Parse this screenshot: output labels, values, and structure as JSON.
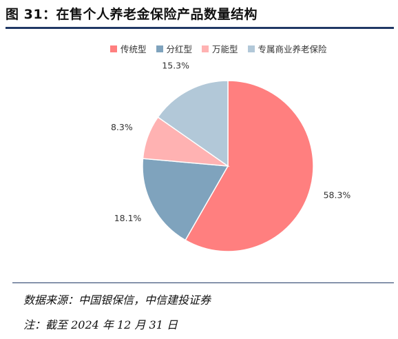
{
  "figure": {
    "title": "图 31：在售个人养老金保险产品数量结构",
    "source": "数据来源：中国银保信，中信建投证券",
    "note": "注：截至 2024 年 12 月 31 日"
  },
  "chart_data": {
    "type": "pie",
    "title": "图 31：在售个人养老金保险产品数量结构",
    "categories": [
      "传统型",
      "分红型",
      "万能型",
      "专属商业养老保险"
    ],
    "values": [
      58.3,
      18.1,
      8.3,
      15.3
    ],
    "labels": [
      "58.3%",
      "18.1%",
      "8.3%",
      "15.3%"
    ],
    "colors": [
      "#FF7F7F",
      "#7FA3BD",
      "#FFB2B2",
      "#B2C8D8"
    ],
    "start_angle": "12 o'clock",
    "direction": "clockwise",
    "legend_position": "top"
  }
}
